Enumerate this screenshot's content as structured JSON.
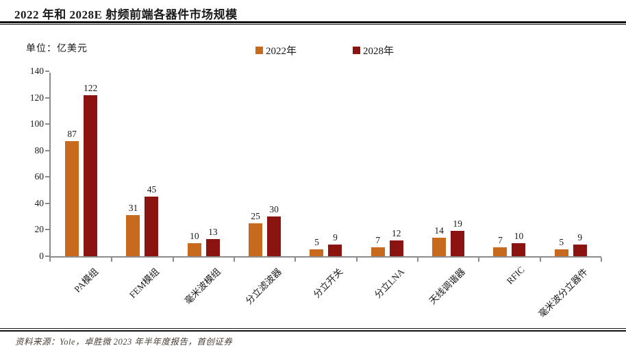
{
  "header": {
    "title": "2022 年和 2028E 射频前端各器件市场规模"
  },
  "unit_label": "单位：亿美元",
  "legend": {
    "items": [
      {
        "label": "2022年",
        "color": "#C86A1E"
      },
      {
        "label": "2028年",
        "color": "#8B1410"
      }
    ]
  },
  "chart_data": {
    "type": "bar",
    "title": "2022 年和 2028E 射频前端各器件市场规模",
    "unit": "亿美元",
    "categories": [
      "PA模组",
      "FEM模组",
      "毫米波模组",
      "分立滤波器",
      "分立开关",
      "分立LNA",
      "天线调谐器",
      "RFIC",
      "毫米波分立器件"
    ],
    "series": [
      {
        "name": "2022年",
        "color": "#C86A1E",
        "values": [
          87,
          31,
          10,
          25,
          5,
          7,
          14,
          7,
          5
        ]
      },
      {
        "name": "2028年",
        "color": "#8B1410",
        "values": [
          122,
          45,
          13,
          30,
          9,
          12,
          19,
          10,
          9
        ]
      }
    ],
    "ylim": [
      0,
      140
    ],
    "yticks": [
      0,
      20,
      40,
      60,
      80,
      100,
      120,
      140
    ],
    "grid": false,
    "legend_position": "top",
    "axis_color": "#8C8C8C"
  },
  "footer": {
    "source": "资料来源：Yole，卓胜微 2023 年半年度报告，首创证券"
  }
}
